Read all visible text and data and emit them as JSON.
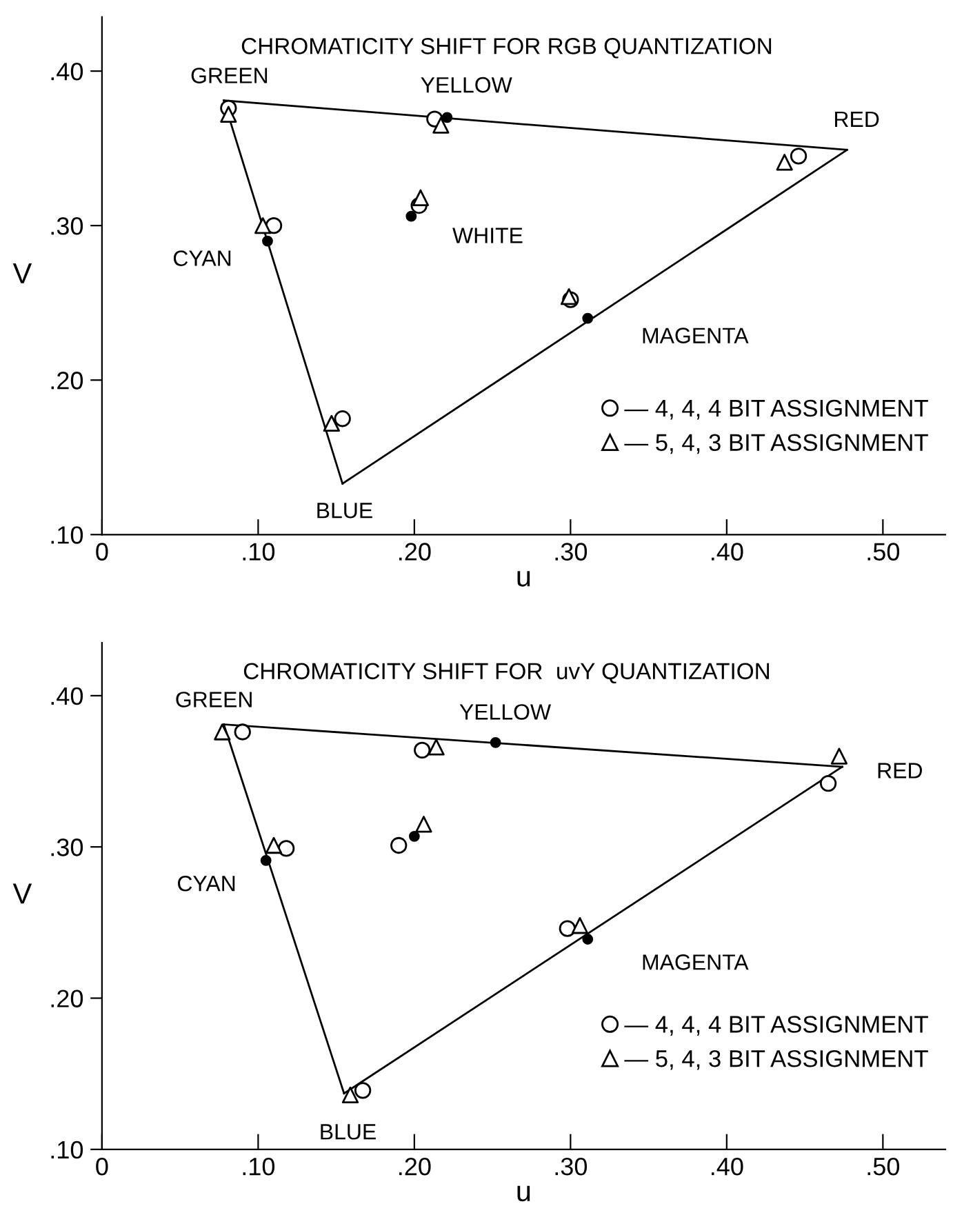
{
  "chart_data": [
    {
      "type": "scatter",
      "title": "CHROMATICITY SHIFT FOR RGB QUANTIZATION",
      "xlabel": "u",
      "ylabel": "V",
      "xlim": [
        0,
        0.54
      ],
      "ylim": [
        0.1,
        0.435
      ],
      "xticks": [
        {
          "value": 0,
          "label": "0"
        },
        {
          "value": 0.1,
          "label": ".10"
        },
        {
          "value": 0.2,
          "label": ".20"
        },
        {
          "value": 0.3,
          "label": ".30"
        },
        {
          "value": 0.4,
          "label": ".40"
        },
        {
          "value": 0.5,
          "label": ".50"
        }
      ],
      "yticks": [
        {
          "value": 0.1,
          "label": ".10"
        },
        {
          "value": 0.2,
          "label": ".20"
        },
        {
          "value": 0.3,
          "label": ".30"
        },
        {
          "value": 0.4,
          "label": ".40"
        }
      ],
      "grid": false,
      "legend": "bottom right",
      "series": [
        {
          "type": "line",
          "color": "#000000",
          "x": [
            0.078,
            0.477
          ],
          "values": [
            0.381,
            0.349
          ],
          "marker": "none"
        },
        {
          "type": "line",
          "color": "#000000",
          "x": [
            0.154,
            0.477
          ],
          "values": [
            0.133,
            0.349
          ],
          "marker": "none"
        },
        {
          "type": "line",
          "color": "#000000",
          "x": [
            0.078,
            0.154
          ],
          "values": [
            0.381,
            0.133
          ],
          "marker": "none"
        },
        {
          "color": "#000000",
          "x": [
            0.221,
            0.106,
            0.311,
            0.198
          ],
          "values": [
            0.37,
            0.29,
            0.24,
            0.306
          ],
          "marker": "circle"
        },
        {
          "name": "— 4, 4, 4 BIT ASSIGNMENT",
          "color": "#000000",
          "x": [
            0.081,
            0.213,
            0.446,
            0.203,
            0.11,
            0.3,
            0.154
          ],
          "values": [
            0.376,
            0.369,
            0.345,
            0.313,
            0.3,
            0.252,
            0.175
          ],
          "marker": "circle"
        },
        {
          "name": "— 5, 4, 3 BIT ASSIGNMENT",
          "color": "#000000",
          "x": [
            0.081,
            0.217,
            0.437,
            0.204,
            0.103,
            0.299,
            0.147
          ],
          "values": [
            0.372,
            0.365,
            0.341,
            0.318,
            0.3,
            0.254,
            0.172
          ],
          "marker": "triangle"
        }
      ],
      "annotations": [
        {
          "text": "GREEN",
          "x": 0.078,
          "y": 0.381
        },
        {
          "text": "YELLOW",
          "x": 0.221,
          "y": 0.37
        },
        {
          "text": "RED",
          "x": 0.477,
          "y": 0.349
        },
        {
          "text": "WHITE",
          "x": 0.198,
          "y": 0.306
        },
        {
          "text": "CYAN",
          "x": 0.106,
          "y": 0.29
        },
        {
          "text": "MAGENTA",
          "x": 0.311,
          "y": 0.24
        },
        {
          "text": "BLUE",
          "x": 0.154,
          "y": 0.133
        }
      ]
    },
    {
      "type": "scatter",
      "title": "CHROMATICITY SHIFT FOR  uvY QUANTIZATION",
      "xlabel": "u",
      "ylabel": "V",
      "xlim": [
        0,
        0.54
      ],
      "ylim": [
        0.1,
        0.435
      ],
      "xticks": [
        {
          "value": 0,
          "label": "0"
        },
        {
          "value": 0.1,
          "label": ".10"
        },
        {
          "value": 0.2,
          "label": ".20"
        },
        {
          "value": 0.3,
          "label": ".30"
        },
        {
          "value": 0.4,
          "label": ".40"
        },
        {
          "value": 0.5,
          "label": ".50"
        }
      ],
      "yticks": [
        {
          "value": 0.1,
          "label": ".10"
        },
        {
          "value": 0.2,
          "label": ".20"
        },
        {
          "value": 0.3,
          "label": ".30"
        },
        {
          "value": 0.4,
          "label": ".40"
        }
      ],
      "grid": false,
      "legend": "bottom right",
      "series": [
        {
          "type": "line",
          "color": "#000000",
          "x": [
            0.078,
            0.474
          ],
          "values": [
            0.381,
            0.353
          ],
          "marker": "none"
        },
        {
          "type": "line",
          "color": "#000000",
          "x": [
            0.155,
            0.474
          ],
          "values": [
            0.137,
            0.353
          ],
          "marker": "none"
        },
        {
          "type": "line",
          "color": "#000000",
          "x": [
            0.078,
            0.155
          ],
          "values": [
            0.381,
            0.137
          ],
          "marker": "none"
        },
        {
          "color": "#000000",
          "x": [
            0.252,
            0.105,
            0.311,
            0.2
          ],
          "values": [
            0.369,
            0.291,
            0.239,
            0.307
          ],
          "marker": "circle"
        },
        {
          "name": "— 4, 4, 4 BIT ASSIGNMENT",
          "color": "#000000",
          "x": [
            0.09,
            0.205,
            0.465,
            0.19,
            0.118,
            0.298,
            0.167
          ],
          "values": [
            0.376,
            0.364,
            0.342,
            0.301,
            0.299,
            0.246,
            0.139
          ],
          "marker": "circle"
        },
        {
          "name": "— 5, 4, 3 BIT ASSIGNMENT",
          "color": "#000000",
          "x": [
            0.077,
            0.214,
            0.472,
            0.206,
            0.11,
            0.306,
            0.159
          ],
          "values": [
            0.376,
            0.366,
            0.36,
            0.315,
            0.301,
            0.248,
            0.136
          ],
          "marker": "triangle"
        }
      ],
      "annotations": [
        {
          "text": "GREEN",
          "x": 0.078,
          "y": 0.381
        },
        {
          "text": "YELLOW",
          "x": 0.252,
          "y": 0.369
        },
        {
          "text": "RED",
          "x": 0.474,
          "y": 0.353
        },
        {
          "text": "CYAN",
          "x": 0.105,
          "y": 0.291
        },
        {
          "text": "MAGENTA",
          "x": 0.311,
          "y": 0.239
        },
        {
          "text": "BLUE",
          "x": 0.155,
          "y": 0.137
        }
      ]
    }
  ]
}
